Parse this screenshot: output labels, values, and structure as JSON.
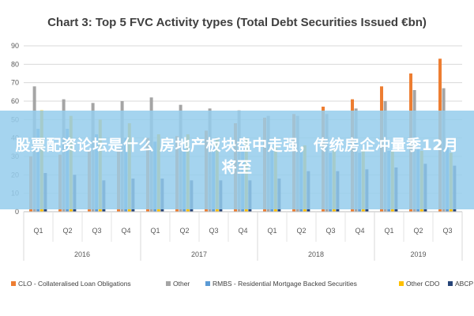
{
  "chart_data": {
    "type": "bar",
    "title": "Chart 3: Top 5 FVC Activity types (Total Debt Securities Issued €bn)",
    "ylim": [
      0,
      90
    ],
    "yticks": [
      0,
      10,
      20,
      30,
      40,
      50,
      60,
      70,
      80,
      90
    ],
    "categories": [
      "Q1",
      "Q2",
      "Q3",
      "Q4",
      "Q1",
      "Q2",
      "Q3",
      "Q4",
      "Q1",
      "Q2",
      "Q3",
      "Q4",
      "Q1",
      "Q2",
      "Q3"
    ],
    "years": [
      {
        "label": "2016",
        "count": 4
      },
      {
        "label": "2017",
        "count": 4
      },
      {
        "label": "2018",
        "count": 4
      },
      {
        "label": "2019",
        "count": 3
      }
    ],
    "series": [
      {
        "name": "CLO - Collateralised Loan Obligations",
        "color": "#ed7d31",
        "values": [
          30,
          31,
          33,
          34,
          40,
          41,
          44,
          48,
          51,
          53,
          57,
          61,
          68,
          75,
          83
        ]
      },
      {
        "name": "Other",
        "color": "#a5a5a5",
        "values": [
          68,
          61,
          59,
          60,
          62,
          58,
          56,
          55,
          52,
          52,
          53,
          56,
          60,
          66,
          67
        ]
      },
      {
        "name": "RMBS - Residential Mortgage Backed Securities",
        "color": "#5b9bd5",
        "values": [
          45,
          45,
          42,
          40,
          38,
          36,
          35,
          34,
          33,
          33,
          32,
          32,
          33,
          34,
          35
        ]
      },
      {
        "name": "Other CDO",
        "color": "#ffc000",
        "values": [
          55,
          52,
          50,
          48,
          42,
          42,
          40,
          40,
          36,
          36,
          34,
          34,
          33,
          33,
          32
        ]
      },
      {
        "name": "ABCP",
        "color": "#264478",
        "values": [
          21,
          20,
          17,
          18,
          18,
          17,
          17,
          17,
          18,
          22,
          22,
          23,
          24,
          26,
          25
        ]
      }
    ],
    "grid": true,
    "legend_position": "bottom"
  },
  "overlay": {
    "headline": "股票配资论坛是什么 房地产板块盘中走强，传统房企冲量季12月将至"
  }
}
